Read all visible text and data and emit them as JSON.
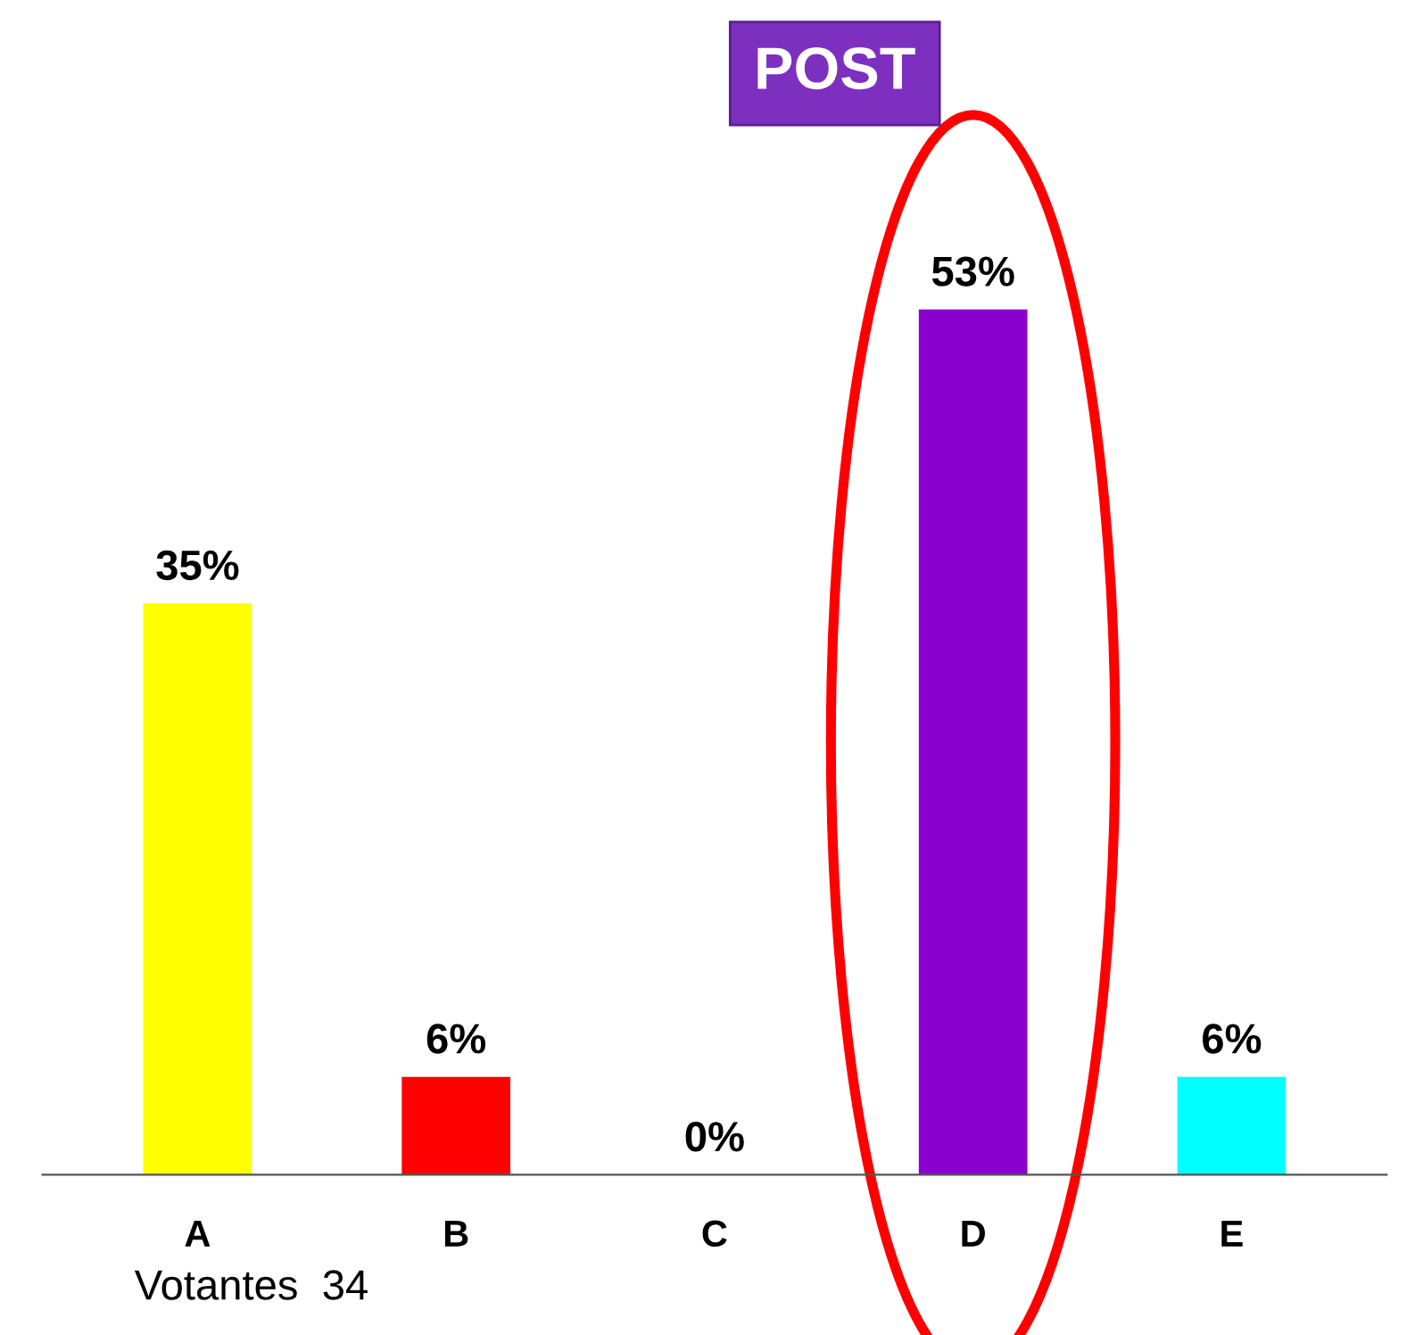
{
  "chart_data": {
    "type": "bar",
    "title": "POST",
    "categories": [
      "A",
      "B",
      "C",
      "D",
      "E"
    ],
    "values": [
      35,
      6,
      0,
      53,
      6
    ],
    "colors": [
      "#ffff00",
      "#ff0000",
      "#000099",
      "#8a00cf",
      "#00ffff"
    ],
    "data_labels": true,
    "value_labels": [
      "35%",
      "6%",
      "0%",
      "53%",
      "6%"
    ],
    "annotations": [
      "Votantes  34"
    ],
    "grid": false,
    "legend": false
  }
}
